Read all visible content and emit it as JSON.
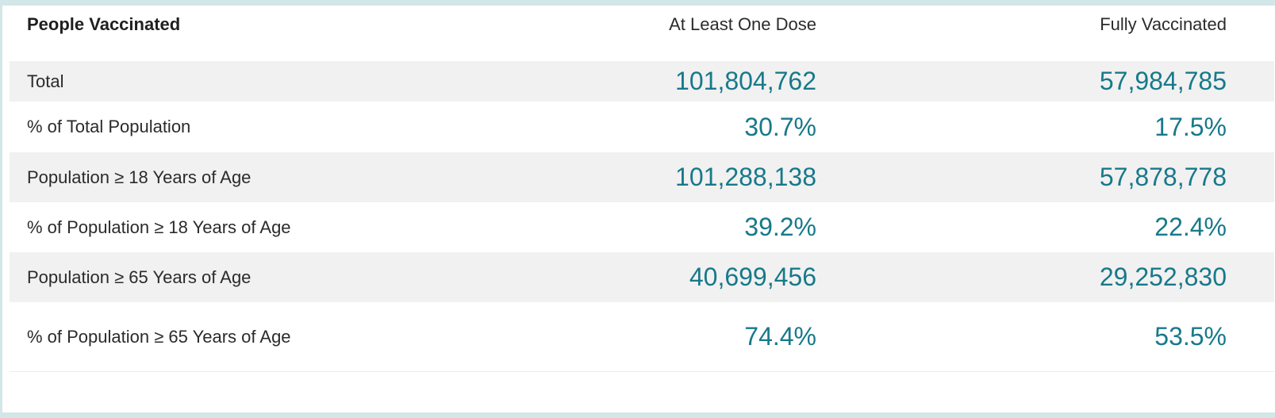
{
  "table": {
    "headers": {
      "label": "People Vaccinated",
      "col_a": "At Least One Dose",
      "col_b": "Fully Vaccinated"
    },
    "rows": [
      {
        "label": "Total",
        "col_a": "101,804,762",
        "col_b": "57,984,785"
      },
      {
        "label": "% of Total Population",
        "col_a": "30.7%",
        "col_b": "17.5%"
      },
      {
        "label": "Population ≥ 18 Years of Age",
        "col_a": "101,288,138",
        "col_b": "57,878,778"
      },
      {
        "label": "% of Population ≥ 18 Years of Age",
        "col_a": "39.2%",
        "col_b": "22.4%"
      },
      {
        "label": "Population ≥ 65 Years of Age",
        "col_a": "40,699,456",
        "col_b": "29,252,830"
      },
      {
        "label": "% of Population ≥ 65 Years of Age",
        "col_a": "74.4%",
        "col_b": "53.5%"
      }
    ]
  },
  "colors": {
    "value_text": "#17798a",
    "shaded_row": "#f1f1f1",
    "border_frame": "#d3e6e8"
  }
}
